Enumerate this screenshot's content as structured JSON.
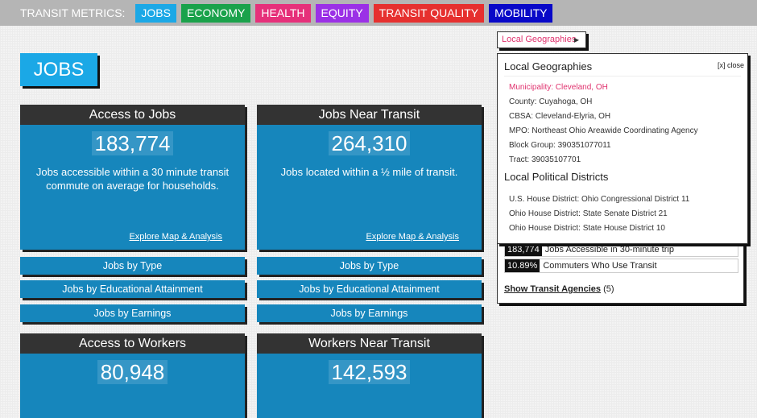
{
  "topbar": {
    "label": "TRANSIT METRICS:",
    "tabs": [
      {
        "label": "JOBS",
        "color": "#1ba8e6"
      },
      {
        "label": "ECONOMY",
        "color": "#1aa24b"
      },
      {
        "label": "HEALTH",
        "color": "#e6307a"
      },
      {
        "label": "EQUITY",
        "color": "#9b30e6"
      },
      {
        "label": "TRANSIT QUALITY",
        "color": "#e6302f"
      },
      {
        "label": "MOBILITY",
        "color": "#0808c8"
      }
    ]
  },
  "page_title": "JOBS",
  "cards": [
    {
      "title": "Access to Jobs",
      "value": "183,774",
      "desc": "Jobs accessible within a 30 minute transit commute on average for households.",
      "link": "Explore Map & Analysis"
    },
    {
      "title": "Jobs Near Transit",
      "value": "264,310",
      "desc": "Jobs located within a ½ mile of transit.",
      "link": "Explore Map & Analysis"
    },
    {
      "title": "Access to Workers",
      "value": "80,948"
    },
    {
      "title": "Workers Near Transit",
      "value": "142,593"
    }
  ],
  "sub_buttons": [
    "Jobs by Type",
    "Jobs by Educational Attainment",
    "Jobs by Earnings"
  ],
  "geo_button": "Local Geographies",
  "panel": {
    "rows": [
      {
        "value": "183,774",
        "label": "Jobs Accessible in 30-minute trip"
      },
      {
        "value": "10.89%",
        "label": "Commuters Who Use Transit"
      }
    ],
    "agencies_link": "Show Transit Agencies",
    "agencies_count": "(5)"
  },
  "popover": {
    "title": "Local Geographies",
    "close": "[x] close",
    "geographies": [
      "Municipality: Cleveland, OH",
      "County: Cuyahoga, OH",
      "CBSA: Cleveland-Elyria, OH",
      "MPO: Northeast Ohio Areawide Coordinating Agency",
      "Block Group: 390351077011",
      "Tract: 39035107701"
    ],
    "districts_title": "Local Political Districts",
    "districts": [
      "U.S. House District: Ohio Congressional District 11",
      "Ohio House District: State Senate District 21",
      "Ohio House District: State House District 10"
    ]
  }
}
